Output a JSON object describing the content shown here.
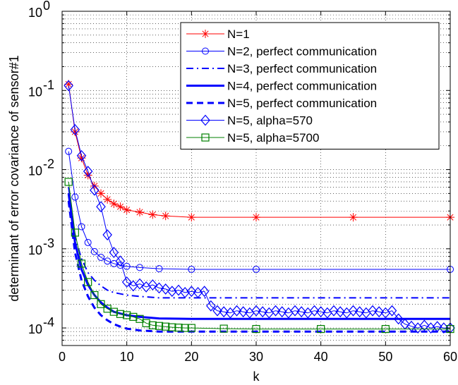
{
  "chart_data": {
    "type": "line",
    "xlabel": "k",
    "ylabel": "determinant of error covariance of sensor#1",
    "yscale": "log",
    "xlim": [
      0,
      60
    ],
    "ylim": [
      6e-05,
      1
    ],
    "xticks": [
      {
        "value": 0,
        "label": "0"
      },
      {
        "value": 10,
        "label": "10"
      },
      {
        "value": 20,
        "label": "20"
      },
      {
        "value": 30,
        "label": "30"
      },
      {
        "value": 40,
        "label": "40"
      },
      {
        "value": 50,
        "label": "50"
      },
      {
        "value": 60,
        "label": "60"
      }
    ],
    "yticks": [
      {
        "value": 0.0001,
        "base": "10",
        "exp": "-4"
      },
      {
        "value": 0.001,
        "base": "10",
        "exp": "-3"
      },
      {
        "value": 0.01,
        "base": "10",
        "exp": "-2"
      },
      {
        "value": 0.1,
        "base": "10",
        "exp": "-1"
      },
      {
        "value": 1,
        "base": "10",
        "exp": "0"
      }
    ],
    "grid": "dotted",
    "legend_position": "top-right",
    "series": [
      {
        "name": "N=1",
        "color": "#ff0000",
        "style": "solid",
        "width": 1,
        "marker": "star",
        "points": [
          [
            1,
            0.12
          ],
          [
            2,
            0.03
          ],
          [
            3,
            0.014
          ],
          [
            4,
            0.0085
          ],
          [
            5,
            0.0062
          ],
          [
            6,
            0.005
          ],
          [
            7,
            0.0042
          ],
          [
            8,
            0.0037
          ],
          [
            9,
            0.0034
          ],
          [
            10,
            0.0031
          ],
          [
            12,
            0.0029
          ],
          [
            14,
            0.0027
          ],
          [
            16,
            0.0026
          ],
          [
            20,
            0.0025
          ],
          [
            30,
            0.0025
          ],
          [
            45,
            0.0025
          ],
          [
            60,
            0.0025
          ]
        ]
      },
      {
        "name": "N=2, perfect communication",
        "color": "#0000ff",
        "style": "solid",
        "width": 1,
        "marker": "circle",
        "points": [
          [
            1,
            0.017
          ],
          [
            2,
            0.0045
          ],
          [
            3,
            0.0019
          ],
          [
            4,
            0.0012
          ],
          [
            5,
            0.00092
          ],
          [
            6,
            0.00078
          ],
          [
            7,
            0.0007
          ],
          [
            8,
            0.00065
          ],
          [
            9,
            0.00062
          ],
          [
            10,
            0.0006
          ],
          [
            12,
            0.00058
          ],
          [
            15,
            0.00056
          ],
          [
            20,
            0.00055
          ],
          [
            30,
            0.00055
          ],
          [
            60,
            0.00055
          ]
        ]
      },
      {
        "name": "N=3, perfect communication",
        "color": "#0000ff",
        "style": "dashdot",
        "width": 2,
        "points": [
          [
            1,
            0.006
          ],
          [
            2,
            0.0014
          ],
          [
            3,
            0.00075
          ],
          [
            4,
            0.0005
          ],
          [
            5,
            0.0004
          ],
          [
            6,
            0.00034
          ],
          [
            7,
            0.0003
          ],
          [
            8,
            0.00028
          ],
          [
            9,
            0.00027
          ],
          [
            10,
            0.00026
          ],
          [
            12,
            0.00025
          ],
          [
            15,
            0.00024
          ],
          [
            20,
            0.00024
          ],
          [
            60,
            0.00024
          ]
        ]
      },
      {
        "name": "N=4, perfect communication",
        "color": "#0000ff",
        "style": "solid",
        "width": 3,
        "points": [
          [
            1,
            0.005
          ],
          [
            2,
            0.0012
          ],
          [
            3,
            0.00055
          ],
          [
            4,
            0.00035
          ],
          [
            5,
            0.00026
          ],
          [
            6,
            0.00021
          ],
          [
            7,
            0.00018
          ],
          [
            8,
            0.00016
          ],
          [
            9,
            0.000152
          ],
          [
            10,
            0.000145
          ],
          [
            12,
            0.000138
          ],
          [
            15,
            0.000132
          ],
          [
            20,
            0.00013
          ],
          [
            60,
            0.00013
          ]
        ]
      },
      {
        "name": "N=5, perfect communication",
        "color": "#0000ff",
        "style": "dashed",
        "width": 3,
        "points": [
          [
            1,
            0.004
          ],
          [
            2,
            0.0009
          ],
          [
            3,
            0.0004
          ],
          [
            4,
            0.00025
          ],
          [
            5,
            0.00018
          ],
          [
            6,
            0.000145
          ],
          [
            7,
            0.000125
          ],
          [
            8,
            0.000112
          ],
          [
            9,
            0.000104
          ],
          [
            10,
            9.8e-05
          ],
          [
            12,
            9.3e-05
          ],
          [
            15,
            9e-05
          ],
          [
            60,
            9e-05
          ]
        ]
      },
      {
        "name": "N=5, alpha=570",
        "color": "#0000ff",
        "style": "solid",
        "width": 1,
        "marker": "diamond",
        "points": [
          [
            1,
            0.115
          ],
          [
            2,
            0.032
          ],
          [
            3,
            0.015
          ],
          [
            4,
            0.0095
          ],
          [
            5,
            0.0055
          ],
          [
            6,
            0.0034
          ],
          [
            7,
            0.0015
          ],
          [
            8,
            0.0009
          ],
          [
            9,
            0.0007
          ],
          [
            10,
            0.00038
          ],
          [
            11,
            0.00034
          ],
          [
            12,
            0.00036
          ],
          [
            13,
            0.00033
          ],
          [
            14,
            0.00035
          ],
          [
            15,
            0.00032
          ],
          [
            16,
            0.00031
          ],
          [
            17,
            0.00029
          ],
          [
            18,
            0.0003
          ],
          [
            19,
            0.00028
          ],
          [
            20,
            0.00029
          ],
          [
            21,
            0.00028
          ],
          [
            22,
            0.00029
          ],
          [
            23,
            0.00019
          ],
          [
            24,
            0.000165
          ],
          [
            25,
            0.00016
          ],
          [
            26,
            0.000155
          ],
          [
            27,
            0.000165
          ],
          [
            28,
            0.00016
          ],
          [
            29,
            0.000155
          ],
          [
            30,
            0.000165
          ],
          [
            31,
            0.00016
          ],
          [
            32,
            0.000155
          ],
          [
            33,
            0.000165
          ],
          [
            34,
            0.00016
          ],
          [
            35,
            0.000155
          ],
          [
            36,
            0.000165
          ],
          [
            37,
            0.00016
          ],
          [
            38,
            0.000155
          ],
          [
            39,
            0.000165
          ],
          [
            40,
            0.00016
          ],
          [
            41,
            0.000155
          ],
          [
            42,
            0.000165
          ],
          [
            43,
            0.00016
          ],
          [
            44,
            0.000155
          ],
          [
            45,
            0.000165
          ],
          [
            46,
            0.00016
          ],
          [
            47,
            0.000155
          ],
          [
            48,
            0.000165
          ],
          [
            49,
            0.00016
          ],
          [
            50,
            0.000155
          ],
          [
            51,
            0.000165
          ],
          [
            52,
            0.00013
          ],
          [
            53,
            0.000112
          ],
          [
            54,
            0.000105
          ],
          [
            55,
            0.0001
          ],
          [
            56,
            0.000108
          ],
          [
            57,
            0.0001
          ],
          [
            58,
            0.000104
          ],
          [
            59,
            0.0001
          ],
          [
            60,
            0.0001
          ]
        ]
      },
      {
        "name": "N=5, alpha=5700",
        "color": "#008000",
        "style": "solid",
        "width": 1,
        "marker": "square",
        "points": [
          [
            1,
            0.007
          ],
          [
            2,
            0.0016
          ],
          [
            3,
            0.00065
          ],
          [
            4,
            0.00038
          ],
          [
            5,
            0.00026
          ],
          [
            6,
            0.0002
          ],
          [
            7,
            0.000175
          ],
          [
            8,
            0.00016
          ],
          [
            9,
            0.00015
          ],
          [
            10,
            0.000145
          ],
          [
            11,
            0.000138
          ],
          [
            12,
            0.00013
          ],
          [
            13,
            0.000115
          ],
          [
            14,
            0.000108
          ],
          [
            15,
            0.000106
          ],
          [
            16,
            0.000104
          ],
          [
            17,
            0.000102
          ],
          [
            18,
            0.000101
          ],
          [
            19,
            0.0001
          ],
          [
            20,
            0.0001
          ],
          [
            25,
            9.8e-05
          ],
          [
            30,
            9.7e-05
          ],
          [
            40,
            9.7e-05
          ],
          [
            50,
            9.7e-05
          ],
          [
            60,
            9.7e-05
          ]
        ]
      }
    ]
  }
}
